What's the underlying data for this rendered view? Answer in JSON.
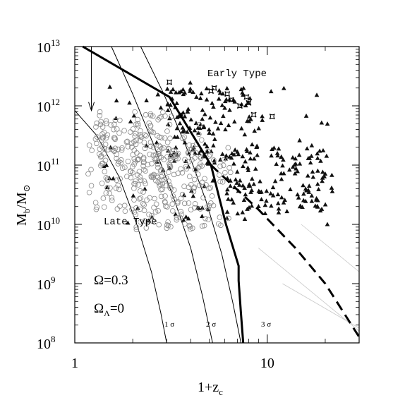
{
  "chart_data": {
    "type": "scatter",
    "xscale": "log",
    "yscale": "log",
    "xlim": [
      1,
      30
    ],
    "ylim": [
      100000000.0,
      10000000000000.0
    ],
    "xlabel": "1+z",
    "xlabel_sub": "c",
    "ylabel_main": "M",
    "ylabel_sub1": "b",
    "ylabel_sep": "/M",
    "ylabel_sub2": "⊙",
    "x_ticks": [
      {
        "v": 1,
        "label": "1"
      },
      {
        "v": 10,
        "label": "10"
      }
    ],
    "y_ticks": [
      {
        "v": 8,
        "base": "10",
        "exp": "8"
      },
      {
        "v": 9,
        "base": "10",
        "exp": "9"
      },
      {
        "v": 10,
        "base": "10",
        "exp": "10"
      },
      {
        "v": 11,
        "base": "10",
        "exp": "11"
      },
      {
        "v": 12,
        "base": "10",
        "exp": "12"
      },
      {
        "v": 13,
        "base": "10",
        "exp": "13"
      }
    ],
    "annotations": {
      "early": "Early Type",
      "late": "Late Type",
      "omega": "Ω=0.3",
      "omega_l_main": "Ω",
      "omega_l_sub": "Λ",
      "omega_l_val": "=0",
      "sigma1": "1 σ",
      "sigma2": "2 σ",
      "sigma3": "3 σ"
    },
    "sigma_curves": [
      {
        "name": "1 σ",
        "points": [
          [
            1,
            11.92
          ],
          [
            1.3,
            11.5
          ],
          [
            1.7,
            10.8
          ],
          [
            2.1,
            10.0
          ],
          [
            2.5,
            9.2
          ],
          [
            2.8,
            8.5
          ],
          [
            3.0,
            8.0
          ]
        ]
      },
      {
        "name": "2 σ",
        "points": [
          [
            1.55,
            13.0
          ],
          [
            2.0,
            12.2
          ],
          [
            2.6,
            11.3
          ],
          [
            3.3,
            10.4
          ],
          [
            4.0,
            9.6
          ],
          [
            4.6,
            8.8
          ],
          [
            5.2,
            8.0
          ]
        ]
      },
      {
        "name": "3 σ",
        "points": [
          [
            2.2,
            13.0
          ],
          [
            2.9,
            12.2
          ],
          [
            3.8,
            11.3
          ],
          [
            4.8,
            10.4
          ],
          [
            5.8,
            9.5
          ],
          [
            6.6,
            8.7
          ],
          [
            7.3,
            8.0
          ]
        ]
      }
    ],
    "thick_solid": [
      [
        1.1,
        13.0
      ],
      [
        3.1,
        12.15
      ],
      [
        5.1,
        11.0
      ],
      [
        6.1,
        10.0
      ],
      [
        7.1,
        9.3
      ],
      [
        7.1,
        9.05
      ],
      [
        7.3,
        8.5
      ],
      [
        7.5,
        8.0
      ]
    ],
    "thick_dashed": [
      [
        5.1,
        11.0
      ],
      [
        9.0,
        10.25
      ],
      [
        14.0,
        9.6
      ],
      [
        20.0,
        9.0
      ],
      [
        30.0,
        8.1
      ]
    ],
    "faint_lines": [
      {
        "points": [
          [
            9.0,
            9.6
          ],
          [
            30.0,
            8.2
          ]
        ]
      },
      {
        "points": [
          [
            12.0,
            9.0
          ],
          [
            30.0,
            8.25
          ]
        ]
      },
      {
        "points": [
          [
            15.0,
            10.0
          ],
          [
            30.0,
            9.2
          ]
        ]
      }
    ],
    "upper_limit_arrow": {
      "x": 1.22,
      "from": 13.0,
      "to": 11.92
    },
    "series": [
      {
        "name": "Early Type",
        "marker": "filled-triangle",
        "n": 340,
        "seed": 7,
        "regions": [
          [
            1.4,
            22.0,
            10.0,
            12.4
          ],
          [
            3.0,
            9.0,
            11.0,
            12.3
          ],
          [
            6.0,
            20.0,
            10.2,
            11.3
          ]
        ]
      },
      {
        "name": "Late Type",
        "marker": "open-circle",
        "n": 380,
        "seed": 23,
        "regions": [
          [
            1.15,
            5.0,
            10.2,
            11.7
          ],
          [
            2.0,
            6.5,
            9.9,
            11.3
          ],
          [
            1.3,
            3.2,
            10.6,
            11.9
          ]
        ]
      },
      {
        "name": "",
        "marker": "open-star",
        "points": [
          [
            3.1,
            12.4
          ],
          [
            5.1,
            12.25
          ],
          [
            5.3,
            12.3
          ],
          [
            6.2,
            12.2
          ],
          [
            6.5,
            12.1
          ],
          [
            7.2,
            12.0
          ],
          [
            7.8,
            12.15
          ],
          [
            8.0,
            12.05
          ],
          [
            10.6,
            11.82
          ],
          [
            8.5,
            11.85
          ]
        ]
      }
    ]
  }
}
